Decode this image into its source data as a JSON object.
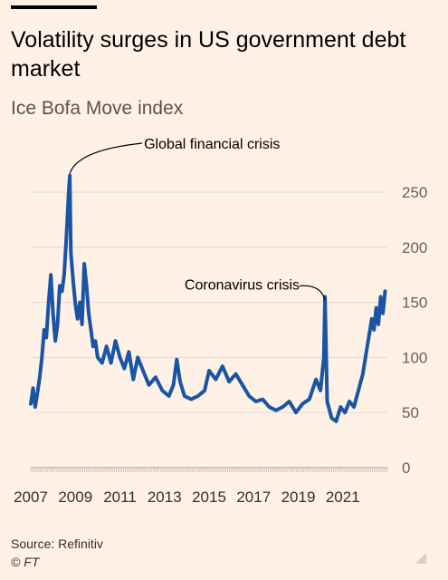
{
  "header": {
    "title": "Volatility surges in US government debt market",
    "subtitle": "Ice Bofa Move index"
  },
  "footer": {
    "source": "Source: Refinitiv",
    "credit": "© FT"
  },
  "colors": {
    "background": "#FFF1E5",
    "line": "#1A55A5",
    "grid": "#E6D9CE",
    "text": "#33302E"
  },
  "chart_data": {
    "type": "line",
    "title": "Volatility surges in US government debt market",
    "subtitle": "Ice Bofa Move index",
    "xlabel": "",
    "ylabel": "",
    "xlim": [
      2007.0,
      2023.0
    ],
    "ylim": [
      0,
      260
    ],
    "yticks": [
      0,
      50,
      100,
      150,
      200,
      250
    ],
    "xticks": [
      2007,
      2009,
      2011,
      2013,
      2015,
      2017,
      2019,
      2021
    ],
    "grid": true,
    "y_axis_position": "right",
    "series": [
      {
        "name": "",
        "x": [
          2007.0,
          2007.1,
          2007.2,
          2007.3,
          2007.4,
          2007.5,
          2007.6,
          2007.7,
          2007.8,
          2007.9,
          2008.0,
          2008.1,
          2008.2,
          2008.3,
          2008.4,
          2008.5,
          2008.6,
          2008.7,
          2008.75,
          2008.8,
          2008.9,
          2009.0,
          2009.1,
          2009.2,
          2009.3,
          2009.4,
          2009.5,
          2009.6,
          2009.7,
          2009.8,
          2009.9,
          2010.0,
          2010.2,
          2010.4,
          2010.6,
          2010.8,
          2011.0,
          2011.2,
          2011.4,
          2011.6,
          2011.8,
          2012.0,
          2012.3,
          2012.6,
          2012.9,
          2013.2,
          2013.4,
          2013.55,
          2013.7,
          2013.9,
          2014.2,
          2014.5,
          2014.8,
          2015.0,
          2015.3,
          2015.6,
          2015.9,
          2016.2,
          2016.5,
          2016.8,
          2017.1,
          2017.4,
          2017.7,
          2018.0,
          2018.3,
          2018.6,
          2018.9,
          2019.2,
          2019.5,
          2019.8,
          2020.0,
          2020.1,
          2020.15,
          2020.2,
          2020.3,
          2020.5,
          2020.7,
          2020.9,
          2021.1,
          2021.3,
          2021.5,
          2021.7,
          2021.9,
          2022.1,
          2022.3,
          2022.4,
          2022.5,
          2022.6,
          2022.7,
          2022.8,
          2022.9
        ],
        "values": [
          58,
          72,
          55,
          68,
          82,
          100,
          125,
          118,
          150,
          175,
          140,
          115,
          130,
          165,
          160,
          175,
          210,
          250,
          265,
          195,
          170,
          148,
          135,
          150,
          130,
          185,
          165,
          140,
          125,
          110,
          115,
          100,
          95,
          110,
          95,
          115,
          100,
          90,
          105,
          80,
          100,
          90,
          75,
          82,
          70,
          65,
          75,
          98,
          78,
          65,
          62,
          65,
          70,
          88,
          80,
          92,
          78,
          85,
          75,
          65,
          60,
          62,
          55,
          52,
          55,
          60,
          50,
          58,
          62,
          80,
          70,
          90,
          100,
          155,
          60,
          45,
          42,
          55,
          50,
          60,
          55,
          70,
          85,
          110,
          135,
          125,
          145,
          130,
          155,
          140,
          160
        ]
      }
    ],
    "annotations": [
      {
        "label": "Global financial crisis",
        "x": 2008.75,
        "y": 265
      },
      {
        "label": "Coronavirus crisis",
        "x": 2020.2,
        "y": 155
      }
    ]
  }
}
